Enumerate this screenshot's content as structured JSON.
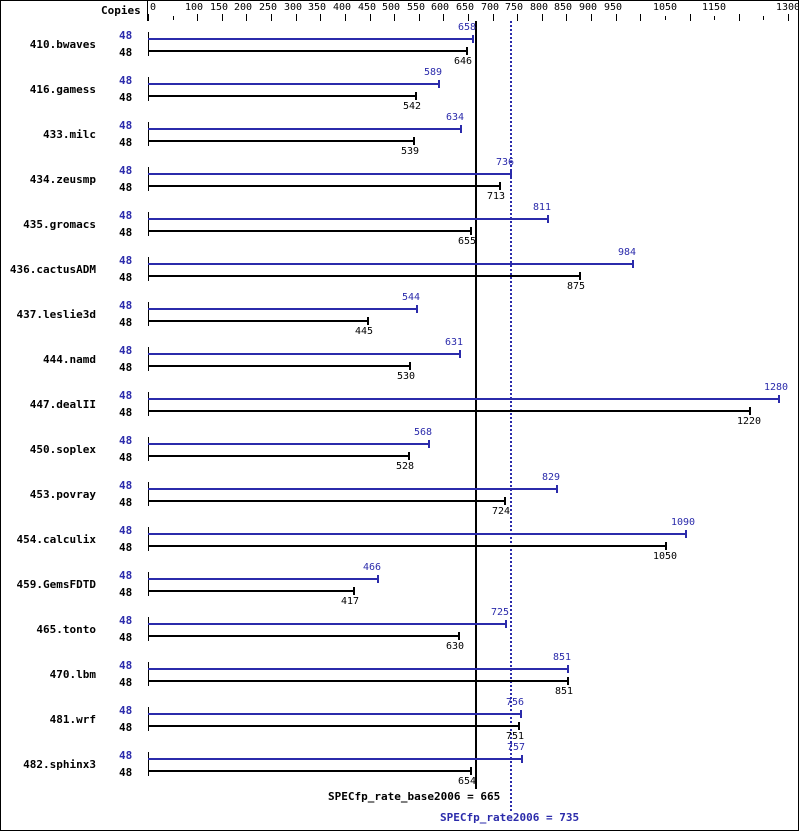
{
  "chart_data": {
    "type": "bar",
    "title": "",
    "xlabel": "",
    "axis_header": "Copies",
    "x_ticks": [
      0,
      100,
      150,
      200,
      250,
      300,
      350,
      400,
      450,
      500,
      550,
      600,
      650,
      700,
      750,
      800,
      850,
      900,
      950,
      1050,
      1150,
      1300
    ],
    "xlim": [
      0,
      1300
    ],
    "colors": {
      "peak": "#2b2bab",
      "base": "#000000"
    },
    "categories": [
      "410.bwaves",
      "416.gamess",
      "433.milc",
      "434.zeusmp",
      "435.gromacs",
      "436.cactusADM",
      "437.leslie3d",
      "444.namd",
      "447.dealII",
      "450.soplex",
      "453.povray",
      "454.calculix",
      "459.GemsFDTD",
      "465.tonto",
      "470.lbm",
      "481.wrf",
      "482.sphinx3"
    ],
    "series": [
      {
        "name": "SPECfp_rate2006 (peak)",
        "copies": 48,
        "values": [
          658,
          589,
          634,
          736,
          811,
          984,
          544,
          631,
          1280,
          568,
          829,
          1090,
          466,
          725,
          851,
          756,
          757
        ]
      },
      {
        "name": "SPECfp_rate_base2006 (base)",
        "copies": 48,
        "values": [
          646,
          542,
          539,
          713,
          655,
          875,
          445,
          530,
          1220,
          528,
          724,
          1050,
          417,
          630,
          851,
          751,
          654
        ]
      }
    ],
    "reference_lines": [
      {
        "label": "SPECfp_rate_base2006 = 665",
        "value": 665,
        "style": "solid"
      },
      {
        "label": "SPECfp_rate2006 = 735",
        "value": 735,
        "style": "dotted"
      }
    ]
  },
  "labels": {
    "copies": "Copies",
    "base_summary": "SPECfp_rate_base2006 = 665",
    "peak_summary": "SPECfp_rate2006 = 735"
  }
}
